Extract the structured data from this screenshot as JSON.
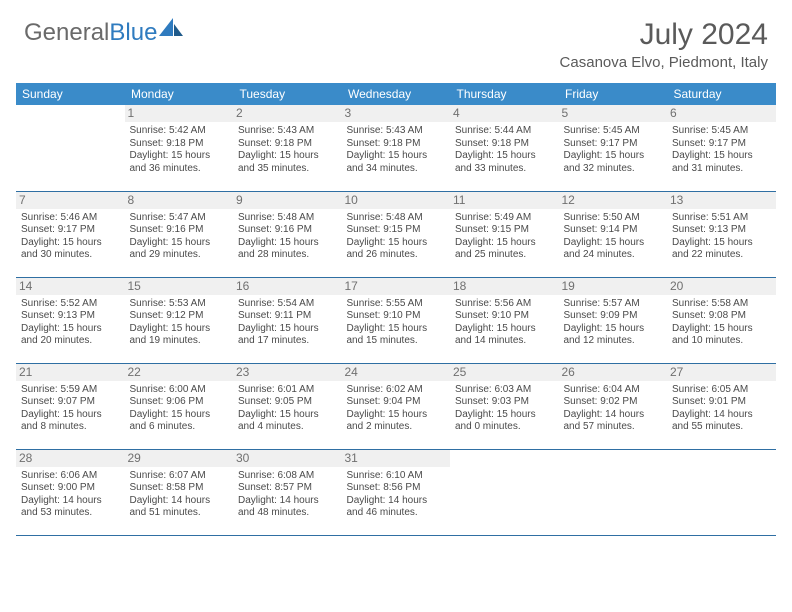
{
  "brand": {
    "part1": "General",
    "part2": "Blue"
  },
  "title": {
    "month": "July 2024",
    "location": "Casanova Elvo, Piedmont, Italy"
  },
  "colors": {
    "header_bg": "#3a8bc9",
    "row_border": "#2f6fa3",
    "daynum_bg": "#f0f0f0",
    "text": "#4a4a4a",
    "brand_gray": "#6a6a6a",
    "brand_blue": "#2f7bbf"
  },
  "weekdays": [
    "Sunday",
    "Monday",
    "Tuesday",
    "Wednesday",
    "Thursday",
    "Friday",
    "Saturday"
  ],
  "weeks": [
    [
      null,
      {
        "n": "1",
        "sr": "5:42 AM",
        "ss": "9:18 PM",
        "dl": "15 hours and 36 minutes."
      },
      {
        "n": "2",
        "sr": "5:43 AM",
        "ss": "9:18 PM",
        "dl": "15 hours and 35 minutes."
      },
      {
        "n": "3",
        "sr": "5:43 AM",
        "ss": "9:18 PM",
        "dl": "15 hours and 34 minutes."
      },
      {
        "n": "4",
        "sr": "5:44 AM",
        "ss": "9:18 PM",
        "dl": "15 hours and 33 minutes."
      },
      {
        "n": "5",
        "sr": "5:45 AM",
        "ss": "9:17 PM",
        "dl": "15 hours and 32 minutes."
      },
      {
        "n": "6",
        "sr": "5:45 AM",
        "ss": "9:17 PM",
        "dl": "15 hours and 31 minutes."
      }
    ],
    [
      {
        "n": "7",
        "sr": "5:46 AM",
        "ss": "9:17 PM",
        "dl": "15 hours and 30 minutes."
      },
      {
        "n": "8",
        "sr": "5:47 AM",
        "ss": "9:16 PM",
        "dl": "15 hours and 29 minutes."
      },
      {
        "n": "9",
        "sr": "5:48 AM",
        "ss": "9:16 PM",
        "dl": "15 hours and 28 minutes."
      },
      {
        "n": "10",
        "sr": "5:48 AM",
        "ss": "9:15 PM",
        "dl": "15 hours and 26 minutes."
      },
      {
        "n": "11",
        "sr": "5:49 AM",
        "ss": "9:15 PM",
        "dl": "15 hours and 25 minutes."
      },
      {
        "n": "12",
        "sr": "5:50 AM",
        "ss": "9:14 PM",
        "dl": "15 hours and 24 minutes."
      },
      {
        "n": "13",
        "sr": "5:51 AM",
        "ss": "9:13 PM",
        "dl": "15 hours and 22 minutes."
      }
    ],
    [
      {
        "n": "14",
        "sr": "5:52 AM",
        "ss": "9:13 PM",
        "dl": "15 hours and 20 minutes."
      },
      {
        "n": "15",
        "sr": "5:53 AM",
        "ss": "9:12 PM",
        "dl": "15 hours and 19 minutes."
      },
      {
        "n": "16",
        "sr": "5:54 AM",
        "ss": "9:11 PM",
        "dl": "15 hours and 17 minutes."
      },
      {
        "n": "17",
        "sr": "5:55 AM",
        "ss": "9:10 PM",
        "dl": "15 hours and 15 minutes."
      },
      {
        "n": "18",
        "sr": "5:56 AM",
        "ss": "9:10 PM",
        "dl": "15 hours and 14 minutes."
      },
      {
        "n": "19",
        "sr": "5:57 AM",
        "ss": "9:09 PM",
        "dl": "15 hours and 12 minutes."
      },
      {
        "n": "20",
        "sr": "5:58 AM",
        "ss": "9:08 PM",
        "dl": "15 hours and 10 minutes."
      }
    ],
    [
      {
        "n": "21",
        "sr": "5:59 AM",
        "ss": "9:07 PM",
        "dl": "15 hours and 8 minutes."
      },
      {
        "n": "22",
        "sr": "6:00 AM",
        "ss": "9:06 PM",
        "dl": "15 hours and 6 minutes."
      },
      {
        "n": "23",
        "sr": "6:01 AM",
        "ss": "9:05 PM",
        "dl": "15 hours and 4 minutes."
      },
      {
        "n": "24",
        "sr": "6:02 AM",
        "ss": "9:04 PM",
        "dl": "15 hours and 2 minutes."
      },
      {
        "n": "25",
        "sr": "6:03 AM",
        "ss": "9:03 PM",
        "dl": "15 hours and 0 minutes."
      },
      {
        "n": "26",
        "sr": "6:04 AM",
        "ss": "9:02 PM",
        "dl": "14 hours and 57 minutes."
      },
      {
        "n": "27",
        "sr": "6:05 AM",
        "ss": "9:01 PM",
        "dl": "14 hours and 55 minutes."
      }
    ],
    [
      {
        "n": "28",
        "sr": "6:06 AM",
        "ss": "9:00 PM",
        "dl": "14 hours and 53 minutes."
      },
      {
        "n": "29",
        "sr": "6:07 AM",
        "ss": "8:58 PM",
        "dl": "14 hours and 51 minutes."
      },
      {
        "n": "30",
        "sr": "6:08 AM",
        "ss": "8:57 PM",
        "dl": "14 hours and 48 minutes."
      },
      {
        "n": "31",
        "sr": "6:10 AM",
        "ss": "8:56 PM",
        "dl": "14 hours and 46 minutes."
      },
      null,
      null,
      null
    ]
  ],
  "labels": {
    "sunrise": "Sunrise:",
    "sunset": "Sunset:",
    "daylight": "Daylight:"
  }
}
